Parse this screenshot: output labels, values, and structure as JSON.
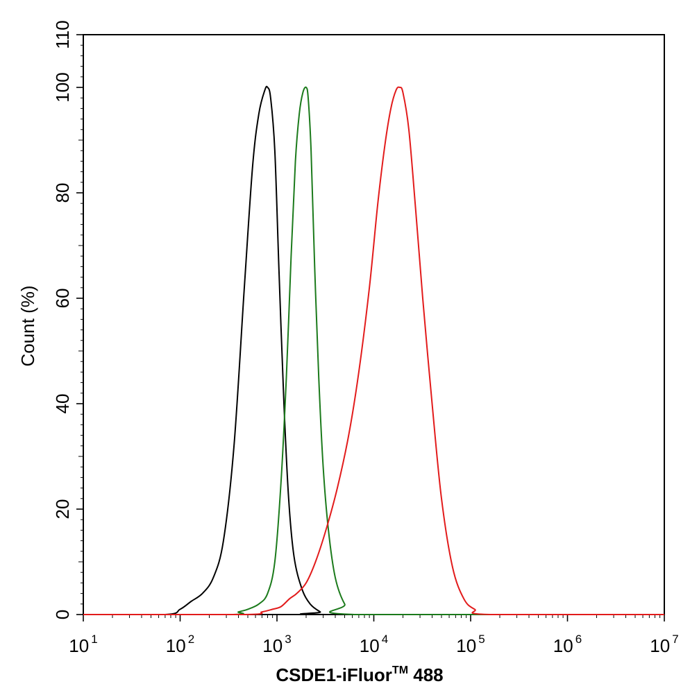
{
  "chart_data": {
    "type": "line",
    "xlabel_main": "CSDE1-iFluor",
    "xlabel_sup": "TM",
    "xlabel_tail": " 488",
    "ylabel": "Count  (%)",
    "x_scale": "log",
    "xlim": [
      10,
      10000000
    ],
    "ylim": [
      0,
      110
    ],
    "x_ticks": [
      {
        "base": "10",
        "exp": "1",
        "value": 10
      },
      {
        "base": "10",
        "exp": "2",
        "value": 100
      },
      {
        "base": "10",
        "exp": "3",
        "value": 1000
      },
      {
        "base": "10",
        "exp": "4",
        "value": 10000
      },
      {
        "base": "10",
        "exp": "5",
        "value": 100000
      },
      {
        "base": "10",
        "exp": "6",
        "value": 1000000
      },
      {
        "base": "10",
        "exp": "7",
        "value": 10000000
      }
    ],
    "y_ticks": [
      0,
      20,
      40,
      60,
      80,
      100,
      110
    ],
    "grid": false,
    "series": [
      {
        "color": "#000000",
        "x": [
          10,
          70,
          100,
          130,
          170,
          220,
          280,
          360,
          460,
          560,
          650,
          750,
          800,
          860,
          950,
          1050,
          1180,
          1320,
          1500,
          1800,
          2200,
          2800,
          3300,
          10000000
        ],
        "y": [
          0,
          0,
          1,
          2.5,
          4,
          7,
          14,
          32,
          62,
          85,
          95,
          99.5,
          100,
          98,
          88,
          65,
          40,
          22,
          11,
          5,
          2,
          0.5,
          0,
          0
        ]
      },
      {
        "color": "#1b7a1b",
        "x": [
          10,
          330,
          400,
          500,
          650,
          800,
          950,
          1100,
          1250,
          1400,
          1550,
          1700,
          1850,
          2000,
          2100,
          2250,
          2450,
          2700,
          3000,
          3400,
          4000,
          5000,
          6500,
          10000000
        ],
        "y": [
          0,
          0,
          0.5,
          1,
          2,
          4,
          10,
          25,
          45,
          68,
          86,
          95,
          99,
          100,
          98,
          88,
          66,
          45,
          28,
          16,
          7,
          2,
          0,
          0
        ]
      },
      {
        "color": "#e21b1b",
        "x": [
          10,
          450,
          700,
          900,
          1100,
          1350,
          1600,
          2000,
          2500,
          3200,
          4200,
          5500,
          7000,
          9000,
          11000,
          13000,
          15000,
          17000,
          18500,
          20000,
          23000,
          27000,
          32000,
          40000,
          50000,
          65000,
          85000,
          110000,
          160000,
          10000000
        ],
        "y": [
          0,
          0,
          0.5,
          1,
          1.5,
          3,
          4,
          6,
          10,
          16,
          24,
          34,
          46,
          62,
          78,
          89,
          96,
          99.5,
          100,
          99,
          92,
          77,
          60,
          40,
          22,
          9,
          3,
          1,
          0,
          0
        ]
      }
    ]
  }
}
